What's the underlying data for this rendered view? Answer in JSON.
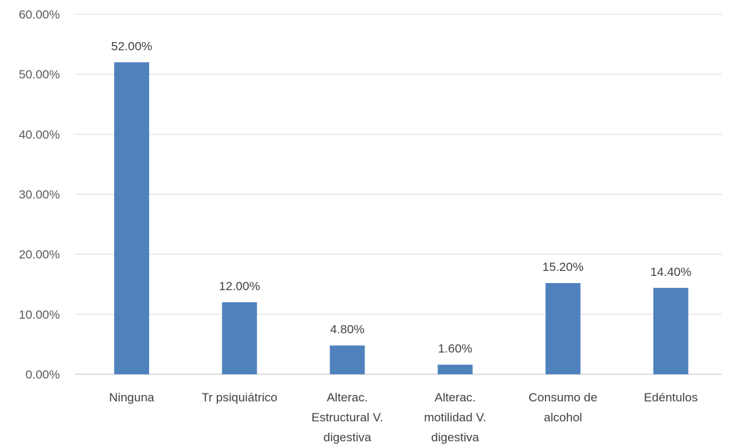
{
  "chart_data": {
    "type": "bar",
    "categories": [
      [
        "Ninguna"
      ],
      [
        "Tr psiquiátrico"
      ],
      [
        "Alterac.",
        "Estructural V.",
        "digestiva"
      ],
      [
        "Alterac.",
        "motilidad V.",
        "digestiva"
      ],
      [
        "Consumo de",
        "alcohol"
      ],
      [
        "Edéntulos"
      ]
    ],
    "values": [
      52.0,
      12.0,
      4.8,
      1.6,
      15.2,
      14.4
    ],
    "data_labels": [
      "52.00%",
      "12.00%",
      "4.80%",
      "1.60%",
      "15.20%",
      "14.40%"
    ],
    "title": "",
    "xlabel": "",
    "ylabel": "",
    "ylim": [
      0,
      60
    ],
    "yticks": [
      0,
      10,
      20,
      30,
      40,
      50,
      60
    ],
    "ytick_labels": [
      "0.00%",
      "10.00%",
      "20.00%",
      "30.00%",
      "40.00%",
      "50.00%",
      "60.00%"
    ],
    "grid": true,
    "legend": "none",
    "colors": {
      "bar": "#4F81BD",
      "grid": "#D9D9D9",
      "axis": "#BFBFBF"
    }
  }
}
